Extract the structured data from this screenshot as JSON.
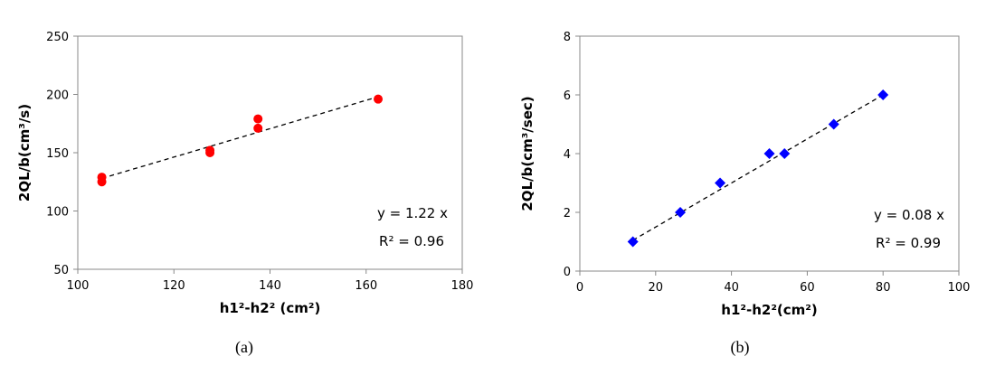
{
  "chart_data": [
    {
      "type": "scatter",
      "caption": "(a)",
      "xlabel": "h1²-h2² (cm²)",
      "ylabel": "2QL/b(cm³/s)",
      "xlim": [
        100,
        180
      ],
      "ylim": [
        50,
        250
      ],
      "xticks": [
        100,
        120,
        140,
        160,
        180
      ],
      "yticks": [
        50,
        100,
        150,
        200,
        250
      ],
      "x": [
        105,
        105,
        127.5,
        127.5,
        137.5,
        137.5,
        162.5
      ],
      "y": [
        129,
        125,
        152,
        150,
        179,
        171,
        196
      ],
      "marker": "circle",
      "color": "#ff0000",
      "trendline": {
        "x": [
          105,
          162.5
        ],
        "y": [
          128,
          198
        ]
      },
      "equation": "y = 1.22 x",
      "r2": "R² = 0.96"
    },
    {
      "type": "scatter",
      "caption": "(b)",
      "xlabel": "h1²-h2²(cm²)",
      "ylabel": "2QL/b(cm³/sec)",
      "xlim": [
        0,
        100
      ],
      "ylim": [
        0,
        8
      ],
      "xticks": [
        0,
        20,
        40,
        60,
        80,
        100
      ],
      "yticks": [
        0,
        2,
        4,
        6,
        8
      ],
      "x": [
        14,
        26.5,
        37,
        50,
        54,
        67,
        80
      ],
      "y": [
        1,
        2,
        3,
        4,
        4,
        5,
        6
      ],
      "marker": "diamond",
      "color": "#0000ff",
      "trendline": {
        "x": [
          14,
          80
        ],
        "y": [
          1.05,
          6.0
        ]
      },
      "equation": "y = 0.08 x",
      "r2": "R² = 0.99"
    }
  ]
}
